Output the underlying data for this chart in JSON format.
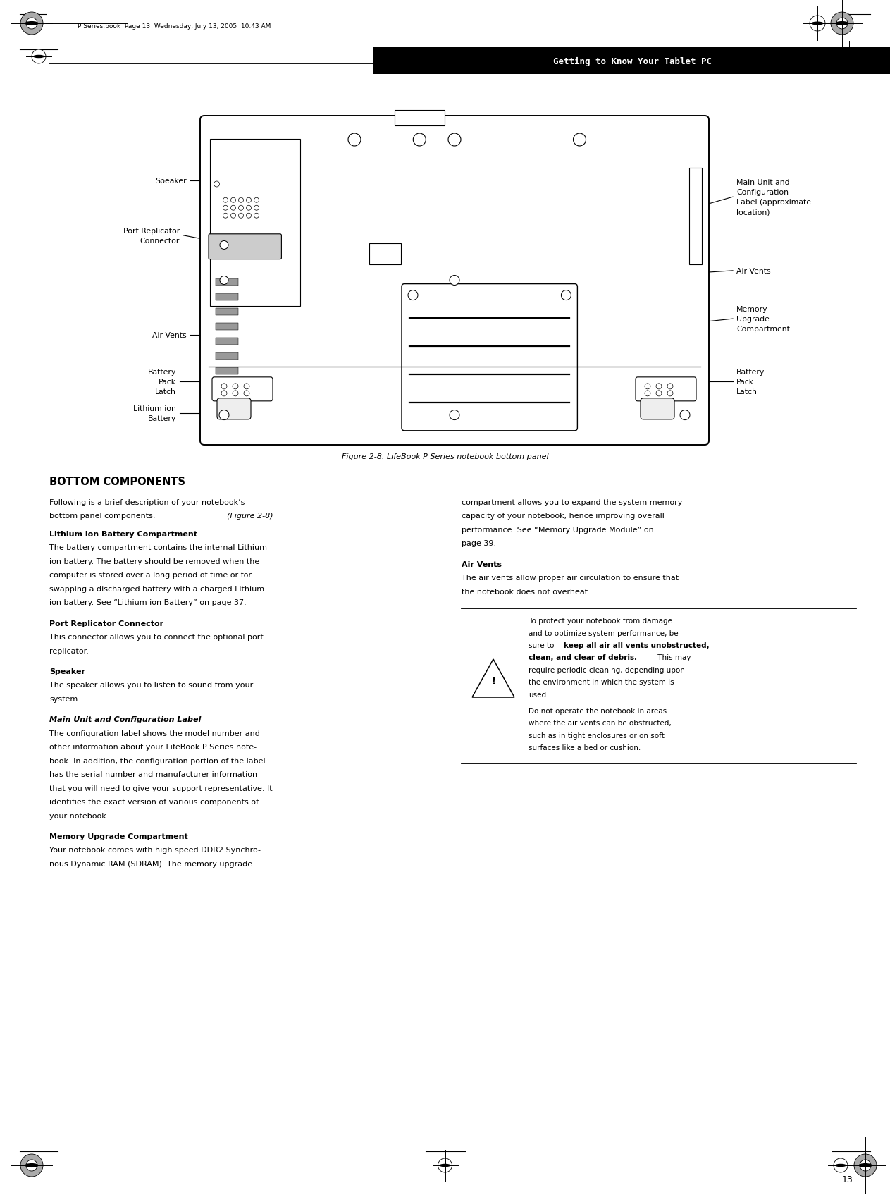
{
  "page_bg": "#ffffff",
  "header_text": "Getting to Know Your Tablet PC",
  "page_number": "13",
  "footer_text": "P Series.book  Page 13  Wednesday, July 13, 2005  10:43 AM",
  "figure_caption": "Figure 2-8. LifeBook P Series notebook bottom panel",
  "section_title": "BOTTOM COMPONENTS",
  "fig_width": 12.63,
  "fig_height": 17.06,
  "dpi": 100
}
